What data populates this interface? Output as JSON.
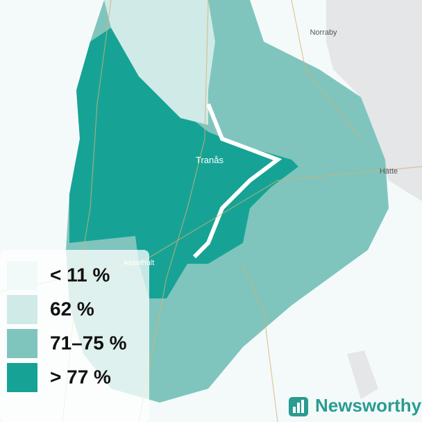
{
  "legend": {
    "items": [
      {
        "label": "< 11 %",
        "color": "#f1faf9"
      },
      {
        "label": "62 %",
        "color": "#cfeae7"
      },
      {
        "label": "71–75 %",
        "color": "#7fc5bd"
      },
      {
        "label": "> 77 %",
        "color": "#16a396"
      }
    ]
  },
  "places": [
    "Norraby",
    "Tranås",
    "Hätte",
    "Asselhult"
  ],
  "brand": "Newsworthy"
}
